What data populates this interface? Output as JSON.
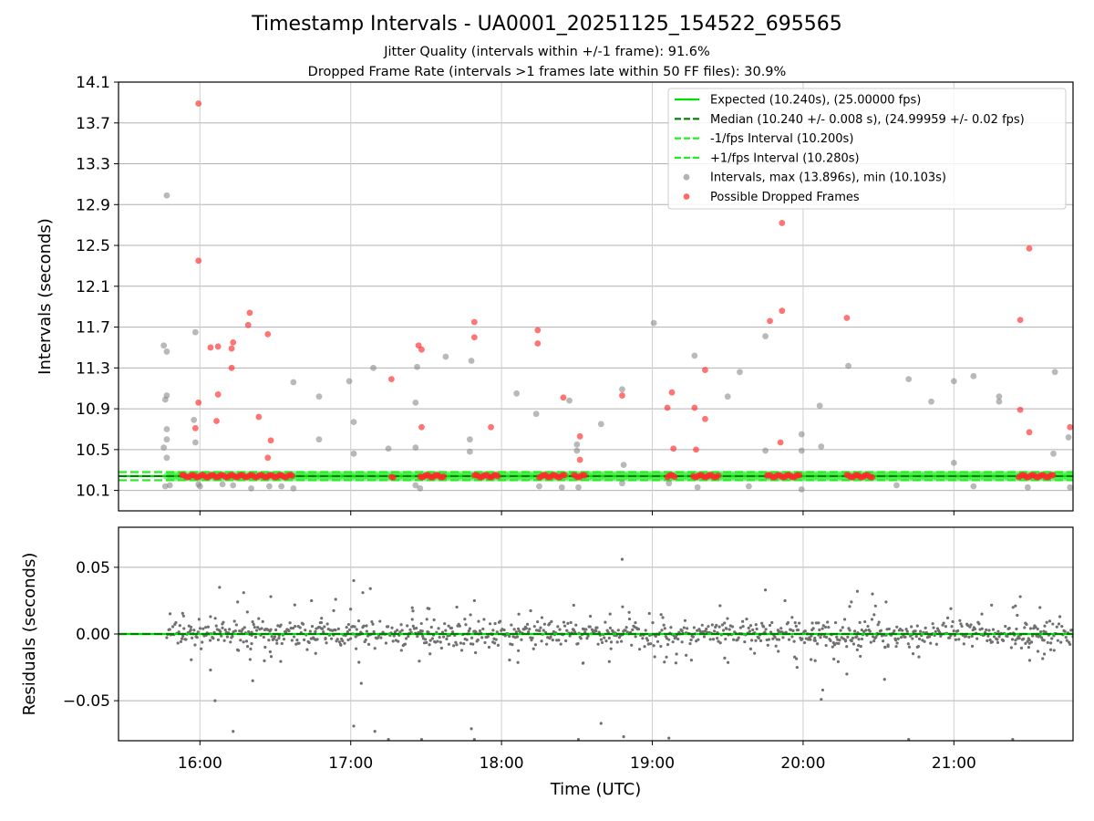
{
  "figure": {
    "title": "Timestamp Intervals - UA0001_20251125_154522_695565",
    "subtitle_1": "Jitter Quality (intervals within +/-1 frame): 91.6%",
    "subtitle_2": "Dropped Frame Rate (intervals >1 frames late within 50 FF files): 30.9%"
  },
  "colors": {
    "expected": "#00e000",
    "median": "#007f00",
    "band": "#22ee22",
    "intervals": "#808080",
    "dropped": "#ff2a2a",
    "grid": "#b0b0b0"
  },
  "chart_data": [
    {
      "type": "scatter",
      "xlabel": "",
      "ylabel": "Intervals (seconds)",
      "x_unit": "hours UTC",
      "xlim": [
        15.46,
        21.79
      ],
      "ylim": [
        9.9,
        14.1
      ],
      "yticks": [
        10.1,
        10.5,
        10.9,
        11.3,
        11.7,
        12.1,
        12.5,
        12.9,
        13.3,
        13.7,
        14.1
      ],
      "ytick_labels": [
        "10.1",
        "10.5",
        "10.9",
        "11.3",
        "11.7",
        "12.1",
        "12.5",
        "12.9",
        "13.3",
        "13.7",
        "14.1"
      ],
      "xticks": [
        16,
        17,
        18,
        19,
        20,
        21
      ],
      "grid": true,
      "legend_position": "top-right",
      "legend": [
        "Expected (10.240s), (25.00000 fps)",
        "Median (10.240 +/- 0.008 s), (24.99959 +/- 0.02 fps)",
        "-1/fps Interval (10.200s)",
        "+1/fps Interval (10.280s)",
        "Intervals, max (13.896s), min (10.103s)",
        "Possible Dropped Frames"
      ],
      "reference_lines": {
        "expected": 10.24,
        "median": 10.24,
        "minus_1fps": 10.2,
        "plus_1fps": 10.28
      },
      "x_range_data": [
        15.78,
        21.79
      ],
      "series": [
        {
          "name": "Intervals, max (13.896s), min (10.103s)",
          "points": [
            [
              15.78,
              12.99
            ],
            [
              15.76,
              11.52
            ],
            [
              15.78,
              11.46
            ],
            [
              15.78,
              11.03
            ],
            [
              15.77,
              10.99
            ],
            [
              15.78,
              10.7
            ],
            [
              15.78,
              10.6
            ],
            [
              15.76,
              10.52
            ],
            [
              15.78,
              10.42
            ],
            [
              15.77,
              10.14
            ],
            [
              15.8,
              10.15
            ],
            [
              15.97,
              11.65
            ],
            [
              15.96,
              10.79
            ],
            [
              15.97,
              10.57
            ],
            [
              15.99,
              10.16
            ],
            [
              16.0,
              10.14
            ],
            [
              16.15,
              10.16
            ],
            [
              16.22,
              10.15
            ],
            [
              16.34,
              10.12
            ],
            [
              16.46,
              10.14
            ],
            [
              16.62,
              11.16
            ],
            [
              16.62,
              10.12
            ],
            [
              16.79,
              11.02
            ],
            [
              16.79,
              10.6
            ],
            [
              16.99,
              11.17
            ],
            [
              17.02,
              10.77
            ],
            [
              17.02,
              10.46
            ],
            [
              17.15,
              11.3
            ],
            [
              17.25,
              10.51
            ],
            [
              17.43,
              10.96
            ],
            [
              17.44,
              11.31
            ],
            [
              17.43,
              10.52
            ],
            [
              17.43,
              10.15
            ],
            [
              17.46,
              10.12
            ],
            [
              17.63,
              11.41
            ],
            [
              17.8,
              11.37
            ],
            [
              17.79,
              10.6
            ],
            [
              17.79,
              10.48
            ],
            [
              18.1,
              11.05
            ],
            [
              18.23,
              10.85
            ],
            [
              18.25,
              10.14
            ],
            [
              18.45,
              10.98
            ],
            [
              18.5,
              10.55
            ],
            [
              18.5,
              10.49
            ],
            [
              18.51,
              10.13
            ],
            [
              18.66,
              10.75
            ],
            [
              18.8,
              11.09
            ],
            [
              18.81,
              10.35
            ],
            [
              18.8,
              10.17
            ],
            [
              19.01,
              11.74
            ],
            [
              19.11,
              10.17
            ],
            [
              19.28,
              11.42
            ],
            [
              19.3,
              10.13
            ],
            [
              19.5,
              11.02
            ],
            [
              19.58,
              11.26
            ],
            [
              19.75,
              11.61
            ],
            [
              19.75,
              10.49
            ],
            [
              19.99,
              10.65
            ],
            [
              19.99,
              10.49
            ],
            [
              19.99,
              10.11
            ],
            [
              20.11,
              10.93
            ],
            [
              20.12,
              10.53
            ],
            [
              20.3,
              11.32
            ],
            [
              20.7,
              11.19
            ],
            [
              20.85,
              10.97
            ],
            [
              21.0,
              11.17
            ],
            [
              21.0,
              10.37
            ],
            [
              21.13,
              11.22
            ],
            [
              21.3,
              11.02
            ],
            [
              21.3,
              10.97
            ],
            [
              21.49,
              10.13
            ],
            [
              21.67,
              11.26
            ],
            [
              21.66,
              10.46
            ],
            [
              21.76,
              10.62
            ],
            [
              21.77,
              10.13
            ],
            [
              21.13,
              10.14
            ],
            [
              20.62,
              10.15
            ],
            [
              19.64,
              10.14
            ],
            [
              18.4,
              10.13
            ],
            [
              16.54,
              10.14
            ]
          ]
        },
        {
          "name": "Possible Dropped Frames",
          "points": [
            [
              15.99,
              13.89
            ],
            [
              15.99,
              12.35
            ],
            [
              15.99,
              10.96
            ],
            [
              15.97,
              10.71
            ],
            [
              16.07,
              11.5
            ],
            [
              16.12,
              11.51
            ],
            [
              16.12,
              11.04
            ],
            [
              16.11,
              10.78
            ],
            [
              16.21,
              11.49
            ],
            [
              16.22,
              11.55
            ],
            [
              16.21,
              11.3
            ],
            [
              16.32,
              11.72
            ],
            [
              16.33,
              11.84
            ],
            [
              16.39,
              10.82
            ],
            [
              16.45,
              11.63
            ],
            [
              16.47,
              10.59
            ],
            [
              16.45,
              10.42
            ],
            [
              17.27,
              11.19
            ],
            [
              17.45,
              11.52
            ],
            [
              17.47,
              11.48
            ],
            [
              17.47,
              10.72
            ],
            [
              17.82,
              11.75
            ],
            [
              17.82,
              11.6
            ],
            [
              17.93,
              10.72
            ],
            [
              18.24,
              11.67
            ],
            [
              18.24,
              11.54
            ],
            [
              18.41,
              11.01
            ],
            [
              18.52,
              10.63
            ],
            [
              18.52,
              10.4
            ],
            [
              18.8,
              11.03
            ],
            [
              19.1,
              10.91
            ],
            [
              19.13,
              11.06
            ],
            [
              19.14,
              10.51
            ],
            [
              19.28,
              10.91
            ],
            [
              19.29,
              10.5
            ],
            [
              19.35,
              10.8
            ],
            [
              19.35,
              11.28
            ],
            [
              19.78,
              11.76
            ],
            [
              19.86,
              11.86
            ],
            [
              19.86,
              12.72
            ],
            [
              19.85,
              10.57
            ],
            [
              20.29,
              11.79
            ],
            [
              21.44,
              11.77
            ],
            [
              21.44,
              10.89
            ],
            [
              21.5,
              10.67
            ],
            [
              21.5,
              12.47
            ],
            [
              21.77,
              10.72
            ]
          ]
        }
      ]
    },
    {
      "type": "scatter",
      "xlabel": "Time (UTC)",
      "ylabel": "Residuals (seconds)",
      "xlim": [
        15.46,
        21.79
      ],
      "ylim": [
        -0.08,
        0.08
      ],
      "yticks": [
        -0.05,
        0.0,
        0.05
      ],
      "ytick_labels": [
        "−0.05",
        "0.00",
        "0.05"
      ],
      "xticks": [
        16,
        17,
        18,
        19,
        20,
        21
      ],
      "xtick_labels": [
        "16:00",
        "17:00",
        "18:00",
        "19:00",
        "20:00",
        "21:00"
      ],
      "grid": true,
      "series": [
        {
          "name": "",
          "points": [
            [
              16.1,
              -0.05
            ],
            [
              16.22,
              -0.073
            ],
            [
              16.13,
              0.035
            ],
            [
              16.29,
              0.031
            ],
            [
              16.25,
              0.024
            ],
            [
              16.47,
              0.028
            ],
            [
              17.02,
              0.04
            ],
            [
              17.02,
              -0.069
            ],
            [
              17.16,
              -0.073
            ],
            [
              17.25,
              -0.079
            ],
            [
              17.47,
              -0.079
            ],
            [
              17.8,
              -0.071
            ],
            [
              17.82,
              -0.079
            ],
            [
              18.51,
              -0.079
            ],
            [
              18.66,
              -0.067
            ],
            [
              18.8,
              0.056
            ],
            [
              18.81,
              -0.077
            ],
            [
              19.11,
              -0.078
            ],
            [
              19.75,
              0.033
            ],
            [
              19.88,
              0.025
            ],
            [
              20.12,
              -0.049
            ],
            [
              20.13,
              -0.042
            ],
            [
              20.36,
              0.032
            ],
            [
              20.46,
              0.03
            ],
            [
              20.48,
              0.021
            ],
            [
              20.54,
              -0.034
            ],
            [
              20.7,
              -0.079
            ],
            [
              21.39,
              -0.079
            ],
            [
              17.07,
              -0.037
            ],
            [
              17.13,
              0.034
            ],
            [
              17.08,
              0.031
            ],
            [
              16.07,
              -0.027
            ],
            [
              16.35,
              -0.035
            ],
            [
              16.74,
              0.025
            ],
            [
              16.9,
              0.026
            ],
            [
              17.52,
              0.019
            ],
            [
              17.82,
              0.025
            ],
            [
              18.54,
              -0.022
            ],
            [
              18.72,
              0.015
            ],
            [
              19.08,
              -0.021
            ],
            [
              19.48,
              -0.018
            ],
            [
              19.96,
              -0.025
            ],
            [
              20.08,
              -0.02
            ],
            [
              20.29,
              -0.03
            ],
            [
              20.32,
              0.024
            ],
            [
              20.55,
              0.024
            ],
            [
              20.98,
              0.019
            ],
            [
              21.42,
              0.014
            ],
            [
              21.44,
              0.028
            ],
            [
              21.6,
              -0.015
            ]
          ]
        }
      ]
    }
  ]
}
